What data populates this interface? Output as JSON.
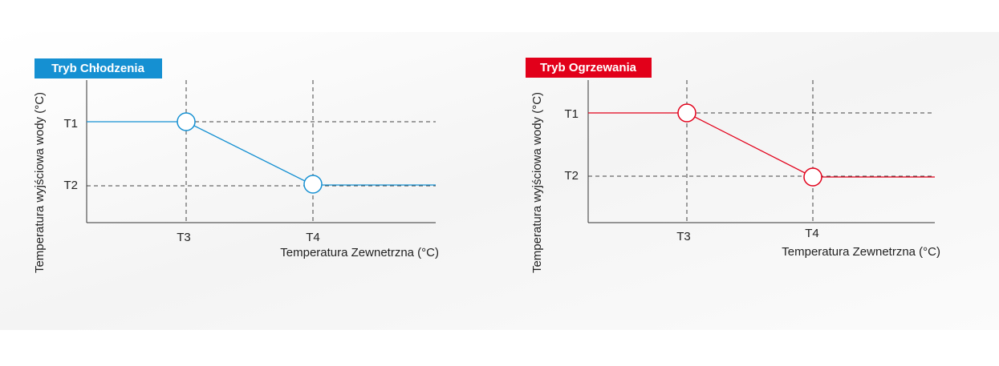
{
  "panels": [
    {
      "badge": "Tryb Chłodzenia",
      "y_label": "Temperatura wyjściowa wody (°C)",
      "x_label": "Temperatura Zewnetrzna (°C)",
      "y_ticks": [
        "T1",
        "T2"
      ],
      "x_ticks": [
        "T3",
        "T4"
      ]
    },
    {
      "badge": "Tryb Ogrzewania",
      "y_label": "Temperatura wyjściowa wody (°C)",
      "x_label": "Temperatura Zewnetrzna (°C)",
      "y_ticks": [
        "T1",
        "T2"
      ],
      "x_ticks": [
        "T3",
        "T4"
      ]
    }
  ]
}
